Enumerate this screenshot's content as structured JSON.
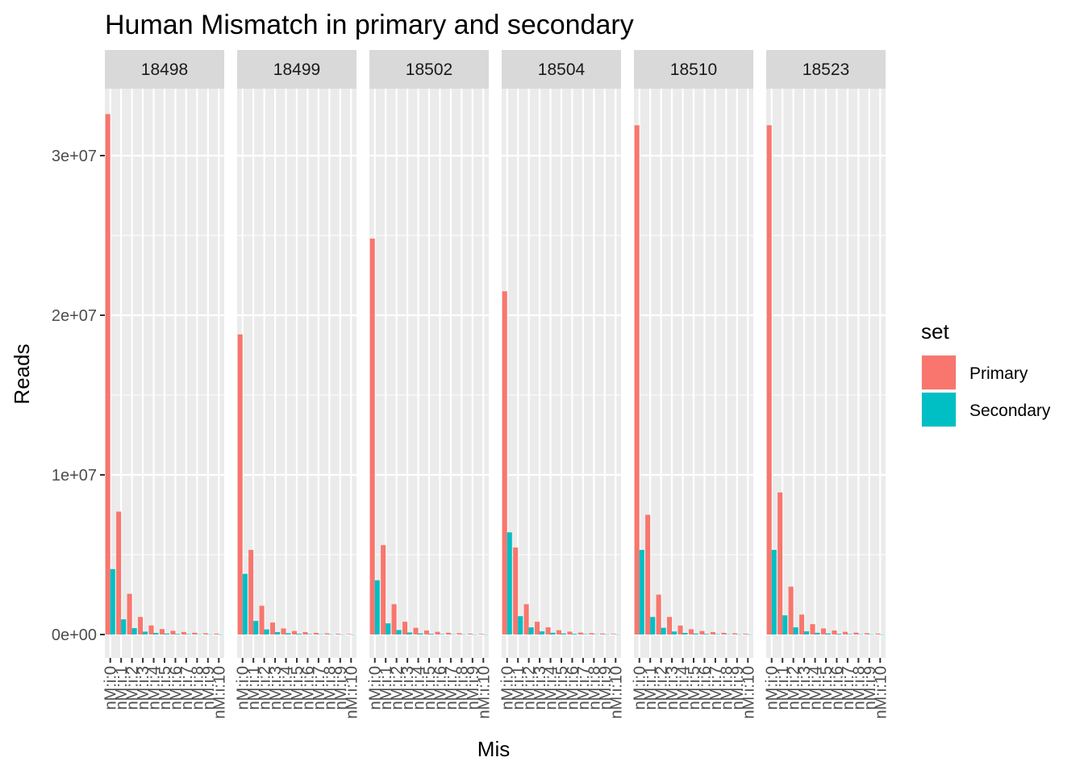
{
  "chart_data": {
    "type": "bar",
    "title": "Human Mismatch in primary and secondary",
    "xlabel": "Mis",
    "ylabel": "Reads",
    "ylim": [
      0,
      35000000
    ],
    "y_ticks": [
      0,
      10000000,
      20000000,
      30000000
    ],
    "y_tick_labels": [
      "0e+00",
      "1e+07",
      "2e+07",
      "3e+07"
    ],
    "grid": true,
    "legend_placement": "right",
    "legend_title": "set",
    "categories": [
      "nM:i:0",
      "nM:i:1",
      "nM:i:2",
      "nM:i:3",
      "nM:i:4",
      "nM:i:5",
      "nM:i:6",
      "nM:i:7",
      "nM:i:8",
      "nM:i:9",
      "nM:i:10"
    ],
    "series_names": [
      "Primary",
      "Secondary"
    ],
    "colors": {
      "Primary": "#F8766D",
      "Secondary": "#00BFC4",
      "panel": "#EBEBEB",
      "strip": "#D9D9D9",
      "grid": "#FFFFFF"
    },
    "facets": [
      {
        "label": "18498",
        "series": [
          {
            "name": "Primary",
            "values": [
              32600000,
              7700000,
              2550000,
              1100000,
              570000,
              340000,
              230000,
              160000,
              110000,
              75000,
              55000
            ]
          },
          {
            "name": "Secondary",
            "values": [
              4100000,
              950000,
              400000,
              180000,
              100000,
              60000,
              40000,
              30000,
              20000,
              15000,
              10000
            ]
          }
        ]
      },
      {
        "label": "18499",
        "series": [
          {
            "name": "Primary",
            "values": [
              18800000,
              5300000,
              1800000,
              750000,
              380000,
              220000,
              150000,
              100000,
              70000,
              50000,
              35000
            ]
          },
          {
            "name": "Secondary",
            "values": [
              3800000,
              850000,
              320000,
              150000,
              80000,
              50000,
              30000,
              20000,
              15000,
              10000,
              8000
            ]
          }
        ]
      },
      {
        "label": "18502",
        "series": [
          {
            "name": "Primary",
            "values": [
              24800000,
              5600000,
              1900000,
              800000,
              420000,
              250000,
              170000,
              110000,
              80000,
              55000,
              40000
            ]
          },
          {
            "name": "Secondary",
            "values": [
              3400000,
              700000,
              280000,
              130000,
              70000,
              45000,
              30000,
              20000,
              15000,
              10000,
              8000
            ]
          }
        ]
      },
      {
        "label": "18504",
        "series": [
          {
            "name": "Primary",
            "values": [
              21500000,
              5450000,
              1900000,
              800000,
              450000,
              270000,
              180000,
              120000,
              85000,
              60000,
              40000
            ]
          },
          {
            "name": "Secondary",
            "values": [
              6400000,
              1150000,
              450000,
              200000,
              110000,
              65000,
              45000,
              30000,
              20000,
              15000,
              10000
            ]
          }
        ]
      },
      {
        "label": "18510",
        "series": [
          {
            "name": "Primary",
            "values": [
              31900000,
              7500000,
              2500000,
              1100000,
              560000,
              330000,
              220000,
              150000,
              105000,
              75000,
              50000
            ]
          },
          {
            "name": "Secondary",
            "values": [
              5300000,
              1100000,
              420000,
              190000,
              100000,
              60000,
              40000,
              28000,
              20000,
              14000,
              10000
            ]
          }
        ]
      },
      {
        "label": "18523",
        "series": [
          {
            "name": "Primary",
            "values": [
              31900000,
              8900000,
              3000000,
              1250000,
              650000,
              380000,
              250000,
              170000,
              115000,
              80000,
              55000
            ]
          },
          {
            "name": "Secondary",
            "values": [
              5300000,
              1200000,
              450000,
              200000,
              110000,
              65000,
              45000,
              30000,
              20000,
              15000,
              10000
            ]
          }
        ]
      }
    ]
  }
}
